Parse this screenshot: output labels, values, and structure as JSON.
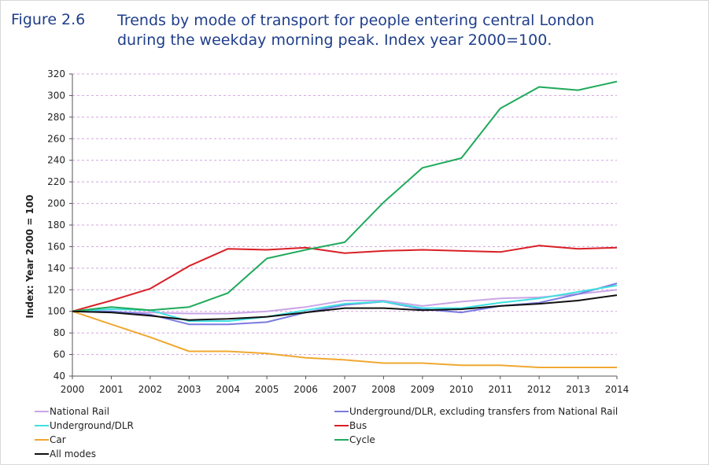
{
  "figure": {
    "label": "Figure 2.6",
    "title_lines": [
      "Trends by mode of transport for people entering central London",
      "during the weekday morning peak. Index year 2000=100."
    ]
  },
  "chart_data": {
    "type": "line",
    "ylabel": "Index: Year 2000 = 100",
    "xlabel": "",
    "x": [
      "2000",
      "2001",
      "2002",
      "2003",
      "2004",
      "2005",
      "2006",
      "2007",
      "2008",
      "2009",
      "2010",
      "2011",
      "2012",
      "2013",
      "2014"
    ],
    "ylim": [
      40,
      320
    ],
    "yticks": [
      "40",
      "60",
      "80",
      "100",
      "120",
      "140",
      "160",
      "180",
      "200",
      "220",
      "240",
      "260",
      "280",
      "300",
      "320"
    ],
    "grid": true,
    "legend_position": "bottom",
    "series": [
      {
        "name": "National Rail",
        "color": "#c9a6e6",
        "values": [
          100,
          99,
          99,
          98,
          98,
          100,
          104,
          110,
          110,
          105,
          109,
          112,
          113,
          116,
          120
        ]
      },
      {
        "name": "Underground/DLR, excluding transfers from National Rail",
        "color": "#7b7be0",
        "values": [
          100,
          100,
          97,
          88,
          88,
          90,
          99,
          106,
          109,
          102,
          99,
          105,
          108,
          116,
          126
        ]
      },
      {
        "name": "Underground/DLR",
        "color": "#3ee0e0",
        "values": [
          100,
          102,
          101,
          91,
          91,
          95,
          101,
          107,
          109,
          103,
          103,
          108,
          112,
          118,
          124
        ]
      },
      {
        "name": "Bus",
        "color": "#d91f26",
        "values": [
          100,
          110,
          121,
          142,
          158,
          157,
          159,
          154,
          156,
          157,
          156,
          155,
          161,
          158,
          159
        ]
      },
      {
        "name": "Car",
        "color": "#f0a832",
        "values": [
          100,
          88,
          76,
          63,
          63,
          61,
          57,
          55,
          52,
          52,
          50,
          50,
          48,
          48,
          48
        ]
      },
      {
        "name": "Cycle",
        "color": "#1faa5a",
        "values": [
          100,
          104,
          101,
          104,
          117,
          149,
          157,
          164,
          201,
          233,
          242,
          288,
          308,
          305,
          313
        ]
      },
      {
        "name": "All modes",
        "color": "#111111",
        "values": [
          100,
          99,
          96,
          92,
          93,
          95,
          99,
          103,
          103,
          101,
          102,
          105,
          107,
          110,
          115
        ]
      }
    ]
  }
}
